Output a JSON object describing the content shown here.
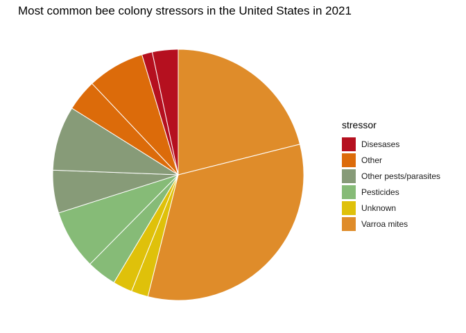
{
  "chart_data": {
    "type": "pie",
    "title": "Most common bee colony stressors in the United States in 2021",
    "legend": {
      "title": "stressor",
      "placement": "right"
    },
    "categories": [
      "Disesases",
      "Other",
      "Other pests/parasites",
      "Pesticides",
      "Unknown",
      "Varroa mites"
    ],
    "colors": {
      "Disesases": "#B5101F",
      "Other": "#DC6B0A",
      "Other pests/parasites": "#879B78",
      "Pesticides": "#86BB77",
      "Unknown": "#DFC10A",
      "Varroa mites": "#DF8C2A"
    },
    "slices": [
      {
        "category": "Varroa mites",
        "value": 20.3
      },
      {
        "category": "Varroa mites",
        "value": 31.6
      },
      {
        "category": "Unknown",
        "value": 2.1
      },
      {
        "category": "Unknown",
        "value": 2.4
      },
      {
        "category": "Pesticides",
        "value": 3.7
      },
      {
        "category": "Pesticides",
        "value": 7.4
      },
      {
        "category": "Other pests/parasites",
        "value": 5.3
      },
      {
        "category": "Other pests/parasites",
        "value": 8.0
      },
      {
        "category": "Other",
        "value": 3.9
      },
      {
        "category": "Other",
        "value": 7.1
      },
      {
        "category": "Disesases",
        "value": 1.3
      },
      {
        "category": "Disesases",
        "value": 3.2
      }
    ]
  }
}
